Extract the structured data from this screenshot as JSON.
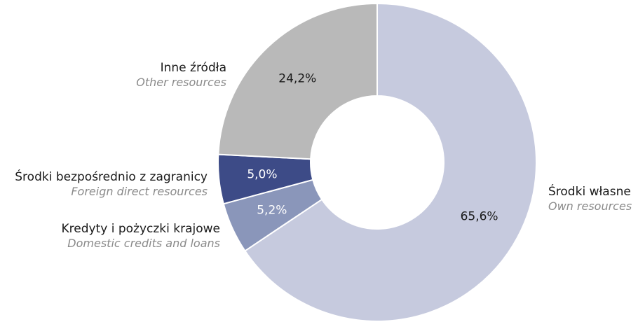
{
  "chart_data": {
    "type": "pie",
    "variant": "donut",
    "title": "",
    "start_angle_deg": 0,
    "direction": "clockwise",
    "slices": [
      {
        "label_pl": "Środki własne",
        "label_en": "Own resources",
        "value": 65.6,
        "value_label": "65,6%",
        "color": "#c6cade",
        "text_color": "#1a1a1a"
      },
      {
        "label_pl": "Kredyty i pożyczki krajowe",
        "label_en": "Domestic credits and loans",
        "value": 5.2,
        "value_label": "5,2%",
        "color": "#8a96ba",
        "text_color": "#ffffff"
      },
      {
        "label_pl": "Środki bezpośrednio z zagranicy",
        "label_en": "Foreign direct resources",
        "value": 5.0,
        "value_label": "5,0%",
        "color": "#3d4b87",
        "text_color": "#ffffff"
      },
      {
        "label_pl": "Inne źródła",
        "label_en": "Other resources",
        "value": 24.2,
        "value_label": "24,2%",
        "color": "#b9b9b9",
        "text_color": "#1a1a1a"
      }
    ]
  }
}
